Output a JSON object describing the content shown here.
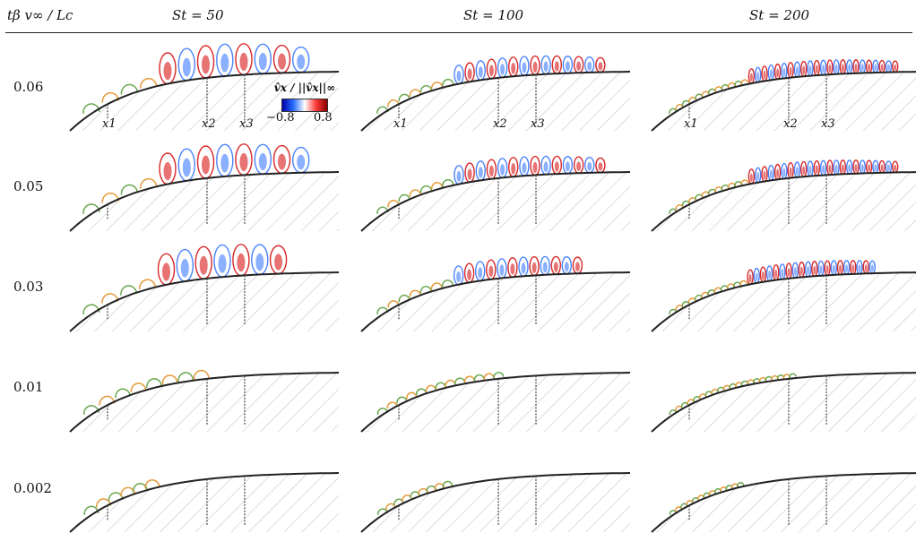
{
  "header": {
    "row_axis_label": "tβ v∞ / Lc",
    "columns": [
      {
        "id": "st50",
        "label": "St = 50"
      },
      {
        "id": "st100",
        "label": "St = 100"
      },
      {
        "id": "st200",
        "label": "St = 200"
      }
    ]
  },
  "rows": [
    {
      "label": "0.06"
    },
    {
      "label": "0.05"
    },
    {
      "label": "0.03"
    },
    {
      "label": "0.01"
    },
    {
      "label": "0.002"
    }
  ],
  "station_labels": [
    "x1",
    "x2",
    "x3"
  ],
  "colorbar": {
    "title": "v̂x / ||v̂x||∞",
    "min": "−0.8",
    "max": "0.8",
    "colors": [
      "#0000aa",
      "#2a6fff",
      "#ffffff",
      "#ff3b3b",
      "#880000"
    ]
  },
  "colors": {
    "wall": "#222222",
    "hatch": "#bdbdbd",
    "green_contour": "#6aa84f",
    "orange_contour": "#e69a3a",
    "positive": "#d40000",
    "negative": "#2a6fff"
  }
}
